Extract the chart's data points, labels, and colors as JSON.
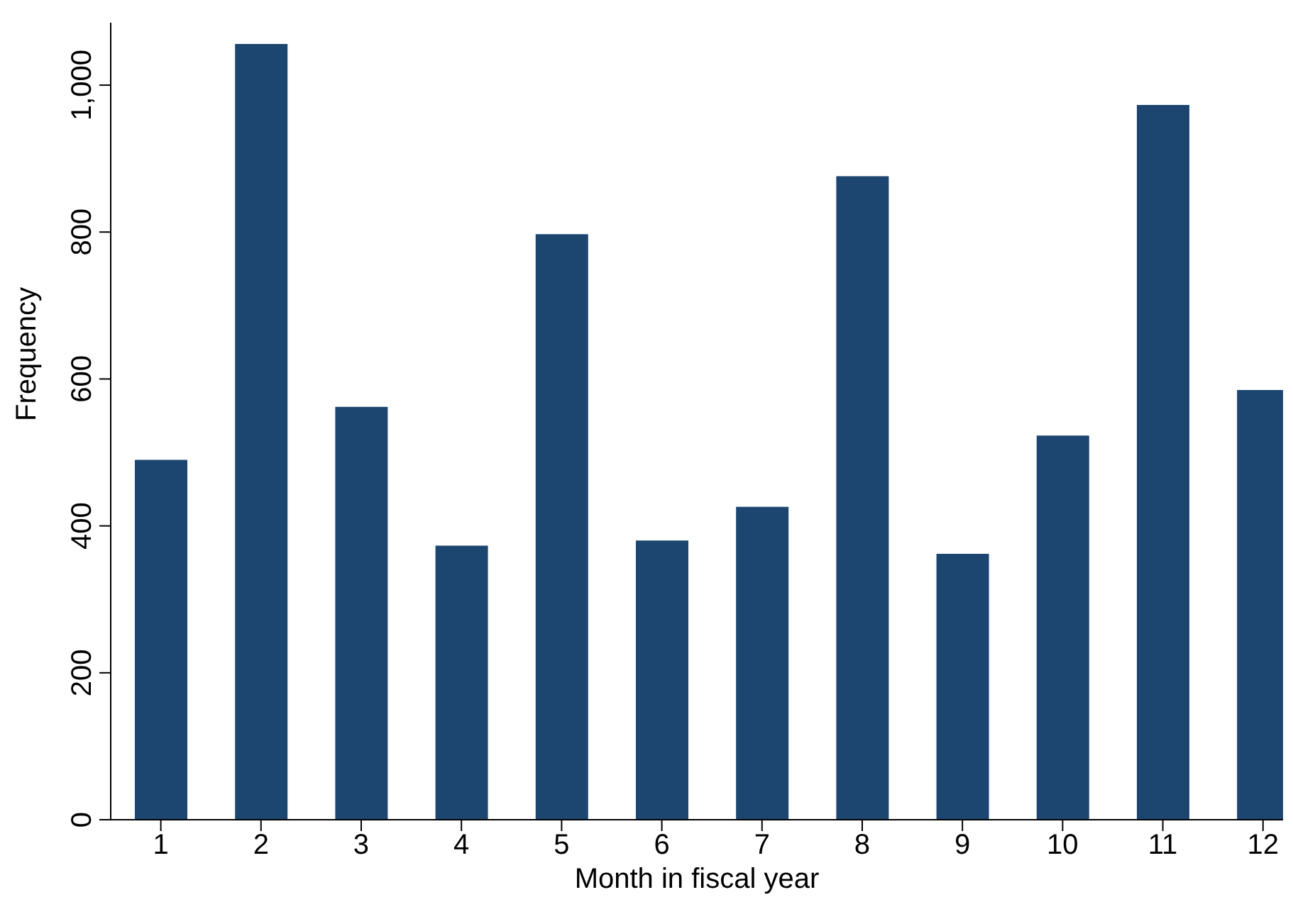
{
  "chart_data": {
    "type": "bar",
    "xlabel": "Month in fiscal year",
    "ylabel": "Frequency",
    "x": [
      1,
      2,
      3,
      4,
      5,
      6,
      7,
      8,
      9,
      10,
      11,
      12
    ],
    "values": [
      490,
      1056,
      562,
      373,
      797,
      380,
      426,
      876,
      362,
      523,
      973,
      585
    ],
    "color": "#1c4670",
    "xlim": [
      0.5,
      12.2
    ],
    "xticks": [
      1,
      2,
      3,
      4,
      5,
      6,
      7,
      8,
      9,
      10,
      11,
      12
    ],
    "ylim": [
      0,
      1085
    ],
    "yticks": [
      0,
      200,
      400,
      600,
      800,
      {
        "value": 1000,
        "label": "1,000"
      }
    ],
    "grid": false,
    "legend": false
  }
}
